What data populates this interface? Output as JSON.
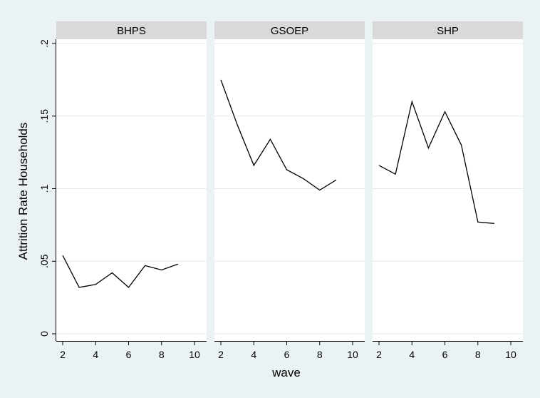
{
  "chart_data": {
    "type": "line",
    "ylabel": "Attrition Rate Households",
    "xlabel": "wave",
    "xlim": [
      2,
      10
    ],
    "ylim": [
      0,
      0.2
    ],
    "x_ticks": [
      2,
      4,
      6,
      8,
      10
    ],
    "y_ticks": [
      0,
      0.05,
      0.1,
      0.15,
      0.2
    ],
    "y_tick_labels": [
      "0",
      ".05",
      ".1",
      ".15",
      ".2"
    ],
    "grid": true,
    "colors": {
      "background": "#eaf2f3",
      "plot_area": "#ffffff",
      "panel_header": "#d9d9d9",
      "grid": "#e1ebeb",
      "line": "#000000"
    },
    "panels": [
      {
        "title": "BHPS",
        "x": [
          2,
          3,
          4,
          5,
          6,
          7,
          8,
          9
        ],
        "y": [
          0.054,
          0.032,
          0.034,
          0.042,
          0.032,
          0.047,
          0.044,
          0.048
        ]
      },
      {
        "title": "GSOEP",
        "x": [
          2,
          3,
          4,
          5,
          6,
          7,
          8,
          9
        ],
        "y": [
          0.175,
          0.144,
          0.116,
          0.134,
          0.113,
          0.107,
          0.099,
          0.106
        ]
      },
      {
        "title": "SHP",
        "x": [
          2,
          3,
          4,
          5,
          6,
          7,
          8,
          9
        ],
        "y": [
          0.116,
          0.11,
          0.16,
          0.128,
          0.153,
          0.13,
          0.077,
          0.076
        ]
      }
    ]
  }
}
